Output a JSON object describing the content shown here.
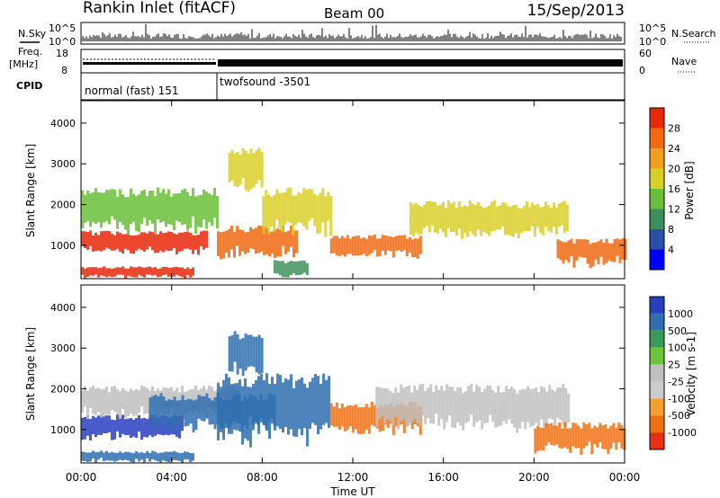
{
  "header": {
    "station": "Rankin Inlet (fitACF)",
    "beam": "Beam 00",
    "date": "15/Sep/2013"
  },
  "top_panels": {
    "nsky_label": "N.Sky",
    "nsearch_label": "N.Search",
    "freq_label": "Freq.",
    "freq_unit": "[MHz]",
    "nave_label": "Nave",
    "cpid_label": "CPID",
    "noise_ticks": [
      "10^5",
      "10^0"
    ],
    "freq_ticks": [
      "18",
      "8"
    ],
    "nave_ticks": [
      "60",
      "0"
    ],
    "cpid_segments": [
      {
        "label": "normal (fast) 151",
        "start_hour": 0,
        "end_hour": 6
      },
      {
        "label": "twofsound -3501",
        "start_hour": 6,
        "end_hour": 24
      }
    ]
  },
  "colors": {
    "power_scale": [
      "#0000ff",
      "#2a4fa8",
      "#3d8f5a",
      "#6bbf3a",
      "#d9cf25",
      "#f0a020",
      "#f06a10",
      "#e8280a"
    ],
    "velocity_scale": [
      "#2a3fbf",
      "#2f6fb0",
      "#3a9a5a",
      "#6cc43a",
      "#bfbfbf",
      "#cccccc",
      "#f0a030",
      "#f07010",
      "#e83010"
    ]
  },
  "chart_data": [
    {
      "type": "heatmap",
      "title": "Power",
      "ylabel": "Slant Range [km]",
      "xlabel": "Time UT",
      "xlim": [
        "00:00",
        "24:00"
      ],
      "ylim": [
        180,
        4550
      ],
      "x_ticks": [
        "00:00",
        "04:00",
        "08:00",
        "12:00",
        "16:00",
        "20:00",
        "00:00"
      ],
      "y_ticks": [
        1000,
        2000,
        3000,
        4000
      ],
      "colorbar": {
        "label": "Power [dB]",
        "ticks": [
          "4",
          "8",
          "12",
          "16",
          "20",
          "24",
          "28"
        ],
        "range": [
          0,
          30
        ]
      },
      "echo_bands": [
        {
          "start_hour": 0.0,
          "end_hour": 5.5,
          "range_km": [
            800,
            1300
          ],
          "power_db": 28
        },
        {
          "start_hour": 0.0,
          "end_hour": 6.0,
          "range_km": [
            1350,
            2300
          ],
          "power_db": 14
        },
        {
          "start_hour": 6.0,
          "end_hour": 9.5,
          "range_km": [
            700,
            1400
          ],
          "power_db": 26
        },
        {
          "start_hour": 8.0,
          "end_hour": 11.0,
          "range_km": [
            1300,
            2300
          ],
          "power_db": 18
        },
        {
          "start_hour": 11.0,
          "end_hour": 15.0,
          "range_km": [
            700,
            1200
          ],
          "power_db": 24
        },
        {
          "start_hour": 14.5,
          "end_hour": 21.5,
          "range_km": [
            1200,
            2000
          ],
          "power_db": 18
        },
        {
          "start_hour": 21.0,
          "end_hour": 24.0,
          "range_km": [
            500,
            1100
          ],
          "power_db": 24
        },
        {
          "start_hour": 0.0,
          "end_hour": 5.0,
          "range_km": [
            200,
            450
          ],
          "power_db": 28
        },
        {
          "start_hour": 6.5,
          "end_hour": 8.0,
          "range_km": [
            2300,
            3300
          ],
          "power_db": 16
        },
        {
          "start_hour": 8.5,
          "end_hour": 10.0,
          "range_km": [
            200,
            600
          ],
          "power_db": 10
        }
      ]
    },
    {
      "type": "heatmap",
      "title": "Velocity",
      "ylabel": "Slant Range [km]",
      "xlabel": "Time UT",
      "xlim": [
        "00:00",
        "24:00"
      ],
      "ylim": [
        180,
        4550
      ],
      "x_ticks": [
        "00:00",
        "04:00",
        "08:00",
        "12:00",
        "16:00",
        "20:00",
        "00:00"
      ],
      "y_ticks": [
        1000,
        2000,
        3000,
        4000
      ],
      "colorbar": {
        "label": "Velocity [m s-1]",
        "ticks": [
          "1000",
          "500",
          "100",
          "25",
          "-25",
          "-100",
          "-500",
          "-1000"
        ],
        "range": [
          -1000,
          1000
        ]
      },
      "echo_bands": [
        {
          "start_hour": 0.0,
          "end_hour": 4.5,
          "range_km": [
            750,
            1300
          ],
          "velocity_ms": 800
        },
        {
          "start_hour": 0.0,
          "end_hour": 7.0,
          "range_km": [
            1300,
            2000
          ],
          "velocity_ms": 0
        },
        {
          "start_hour": 3.0,
          "end_hour": 8.5,
          "range_km": [
            1000,
            1800
          ],
          "velocity_ms": 200
        },
        {
          "start_hour": 6.0,
          "end_hour": 11.0,
          "range_km": [
            700,
            2200
          ],
          "velocity_ms": 150
        },
        {
          "start_hour": 11.0,
          "end_hour": 15.0,
          "range_km": [
            900,
            1600
          ],
          "velocity_ms": -400
        },
        {
          "start_hour": 13.0,
          "end_hour": 21.5,
          "range_km": [
            1000,
            2000
          ],
          "velocity_ms": 0
        },
        {
          "start_hour": 20.0,
          "end_hour": 24.0,
          "range_km": [
            450,
            1100
          ],
          "velocity_ms": -400
        },
        {
          "start_hour": 0.0,
          "end_hour": 5.0,
          "range_km": [
            200,
            450
          ],
          "velocity_ms": 100
        },
        {
          "start_hour": 6.5,
          "end_hour": 8.0,
          "range_km": [
            2300,
            3300
          ],
          "velocity_ms": 200
        }
      ]
    }
  ]
}
